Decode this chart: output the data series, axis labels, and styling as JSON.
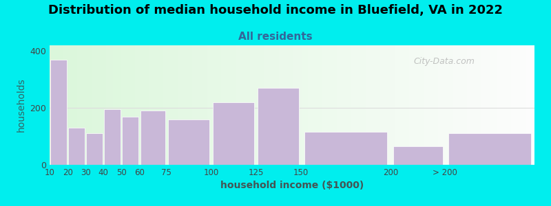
{
  "title": "Distribution of median household income in Bluefield, VA in 2022",
  "subtitle": "All residents",
  "xlabel": "household income ($1000)",
  "ylabel": "households",
  "title_fontsize": 13,
  "subtitle_fontsize": 11,
  "axis_label_fontsize": 10,
  "background_outer": "#00EEEE",
  "bar_color": "#C9B8D8",
  "left_edges": [
    10,
    20,
    30,
    40,
    50,
    60,
    75,
    100,
    125,
    150,
    200,
    230
  ],
  "right_edges": [
    20,
    30,
    40,
    50,
    60,
    75,
    100,
    125,
    150,
    200,
    230,
    280
  ],
  "values": [
    370,
    130,
    110,
    195,
    170,
    190,
    160,
    220,
    270,
    115,
    65,
    110
  ],
  "tick_positions": [
    10,
    20,
    30,
    40,
    50,
    60,
    75,
    100,
    125,
    150,
    200,
    230
  ],
  "tick_labels": [
    "10",
    "20",
    "30",
    "40",
    "50",
    "60",
    "75",
    "100",
    "125",
    "150",
    "200",
    "> 200"
  ],
  "ylim": [
    0,
    420
  ],
  "yticks": [
    0,
    200,
    400
  ],
  "xlim": [
    10,
    280
  ],
  "watermark": "City-Data.com"
}
